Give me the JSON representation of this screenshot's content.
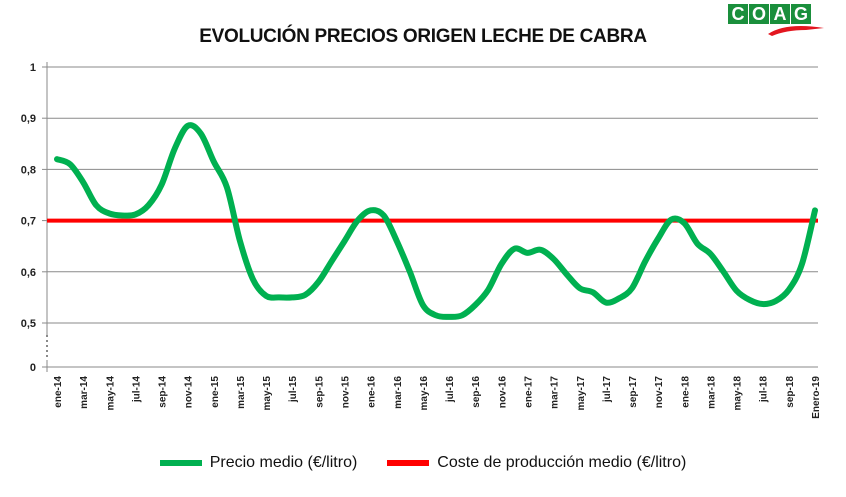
{
  "chart_data": {
    "type": "line",
    "title": "EVOLUCIÓN PRECIOS ORIGEN LECHE DE CABRA",
    "logo_text": "COAG",
    "xlabel": "",
    "ylabel": "",
    "ylim": [
      0,
      1
    ],
    "y_axis_break": [
      0,
      0.5
    ],
    "y_ticks": [
      0,
      0.5,
      0.6,
      0.7,
      0.8,
      0.9,
      1
    ],
    "y_tick_labels": [
      "0",
      "0,5",
      "0,6",
      "0,7",
      "0,8",
      "0,9",
      "1"
    ],
    "x_tick_labels": [
      "ene-14",
      "mar-14",
      "may-14",
      "jul-14",
      "sep-14",
      "nov-14",
      "ene-15",
      "mar-15",
      "may-15",
      "jul-15",
      "sep-15",
      "nov-15",
      "ene-16",
      "mar-16",
      "may-16",
      "jul-16",
      "sep-16",
      "nov-16",
      "ene-17",
      "mar-17",
      "may-17",
      "jul-17",
      "sep-17",
      "nov-17",
      "ene-18",
      "mar-18",
      "may-18",
      "jul-18",
      "sep-18",
      "Enero-19"
    ],
    "grid": true,
    "legend_position": "bottom",
    "series": [
      {
        "name": "Precio medio (€/litro)",
        "color": "#00b050",
        "values": [
          0.82,
          0.81,
          0.775,
          0.73,
          0.714,
          0.71,
          0.712,
          0.73,
          0.77,
          0.84,
          0.885,
          0.87,
          0.815,
          0.765,
          0.66,
          0.585,
          0.553,
          0.55,
          0.55,
          0.555,
          0.58,
          0.62,
          0.66,
          0.7,
          0.72,
          0.71,
          0.66,
          0.6,
          0.535,
          0.515,
          0.512,
          0.515,
          0.535,
          0.565,
          0.615,
          0.645,
          0.637,
          0.643,
          0.625,
          0.595,
          0.568,
          0.56,
          0.54,
          0.548,
          0.568,
          0.62,
          0.665,
          0.702,
          0.695,
          0.655,
          0.635,
          0.6,
          0.563,
          0.545,
          0.537,
          0.543,
          0.565,
          0.615,
          0.72
        ]
      },
      {
        "name": "Coste de producción medio  (€/litro)",
        "color": "#ff0000",
        "constant": 0.7
      }
    ]
  }
}
